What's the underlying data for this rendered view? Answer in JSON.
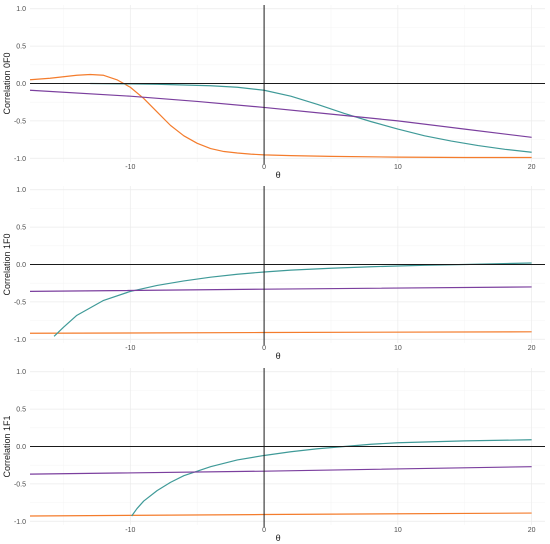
{
  "chart_data": [
    {
      "type": "line",
      "xlabel": "θ",
      "ylabel": "Correlation 0F0",
      "xlim": [
        -17.5,
        21
      ],
      "ylim": [
        -1.05,
        1.05
      ],
      "xticks": [
        -10,
        0,
        10,
        20
      ],
      "yticks": [
        -1.0,
        -0.5,
        0.0,
        0.5,
        1.0
      ],
      "ytick_labels": [
        "-1.0",
        "-0.5",
        "0.0",
        "0.5",
        "1.0"
      ],
      "reference_lines": {
        "x": 0,
        "y": 0
      },
      "series": [
        {
          "color": "#F47C2C",
          "x": [
            -17.5,
            -16,
            -14,
            -13,
            -12,
            -11,
            -10,
            -9,
            -8,
            -7,
            -6,
            -5,
            -4,
            -3,
            -2,
            -1,
            0,
            2,
            5,
            10,
            15,
            20
          ],
          "y": [
            0.05,
            0.07,
            0.11,
            0.12,
            0.11,
            0.05,
            -0.05,
            -0.2,
            -0.38,
            -0.56,
            -0.7,
            -0.8,
            -0.87,
            -0.91,
            -0.93,
            -0.945,
            -0.955,
            -0.965,
            -0.975,
            -0.985,
            -0.99,
            -0.99
          ]
        },
        {
          "color": "#3F9A98",
          "x": [
            -13,
            -10,
            -8,
            -6,
            -4,
            -2,
            0,
            2,
            4,
            6,
            8,
            10,
            12,
            14,
            16,
            18,
            20
          ],
          "y": [
            0.0,
            -0.005,
            -0.01,
            -0.02,
            -0.03,
            -0.05,
            -0.09,
            -0.17,
            -0.28,
            -0.4,
            -0.51,
            -0.61,
            -0.7,
            -0.77,
            -0.83,
            -0.88,
            -0.92
          ]
        },
        {
          "color": "#7B3F9E",
          "x": [
            -17.5,
            -10,
            -5,
            0,
            5,
            10,
            15,
            20
          ],
          "y": [
            -0.09,
            -0.17,
            -0.24,
            -0.32,
            -0.41,
            -0.5,
            -0.61,
            -0.72
          ]
        }
      ]
    },
    {
      "type": "line",
      "xlabel": "θ",
      "ylabel": "Correlation 1F0",
      "xlim": [
        -17.5,
        21
      ],
      "ylim": [
        -1.05,
        1.05
      ],
      "xticks": [
        -10,
        0,
        10,
        20
      ],
      "yticks": [
        -1.0,
        -0.5,
        0.0,
        0.5,
        1.0
      ],
      "ytick_labels": [
        "-1.0",
        "-0.5",
        "0.0",
        "0.5",
        "1.0"
      ],
      "reference_lines": {
        "x": 0,
        "y": 0
      },
      "series": [
        {
          "color": "#F47C2C",
          "x": [
            -17.5,
            0,
            20
          ],
          "y": [
            -0.92,
            -0.91,
            -0.9
          ]
        },
        {
          "color": "#3F9A98",
          "x": [
            -15.7,
            -15,
            -14,
            -12,
            -10,
            -8,
            -6,
            -4,
            -2,
            0,
            2,
            5,
            8,
            10,
            12,
            15,
            20
          ],
          "y": [
            -0.96,
            -0.84,
            -0.68,
            -0.48,
            -0.36,
            -0.28,
            -0.22,
            -0.17,
            -0.13,
            -0.1,
            -0.075,
            -0.05,
            -0.03,
            -0.02,
            -0.01,
            0.0,
            0.02
          ]
        },
        {
          "color": "#7B3F9E",
          "x": [
            -17.5,
            0,
            20
          ],
          "y": [
            -0.36,
            -0.33,
            -0.3
          ]
        }
      ]
    },
    {
      "type": "line",
      "xlabel": "θ",
      "ylabel": "Correlation 1F1",
      "xlim": [
        -17.5,
        21
      ],
      "ylim": [
        -1.05,
        1.05
      ],
      "xticks": [
        -10,
        0,
        10,
        20
      ],
      "yticks": [
        -1.0,
        -0.5,
        0.0,
        0.5,
        1.0
      ],
      "ytick_labels": [
        "-1.0",
        "-0.5",
        "0.0",
        "0.5",
        "1.0"
      ],
      "reference_lines": {
        "x": 0,
        "y": 0
      },
      "series": [
        {
          "color": "#F47C2C",
          "x": [
            -17.5,
            0,
            20
          ],
          "y": [
            -0.93,
            -0.91,
            -0.89
          ]
        },
        {
          "color": "#3F9A98",
          "x": [
            -9.9,
            -9.5,
            -9,
            -8,
            -7,
            -6,
            -4,
            -2,
            0,
            2,
            4,
            6,
            8,
            10,
            12,
            15,
            20
          ],
          "y": [
            -0.93,
            -0.83,
            -0.73,
            -0.59,
            -0.48,
            -0.39,
            -0.27,
            -0.18,
            -0.12,
            -0.07,
            -0.03,
            0.0,
            0.03,
            0.05,
            0.06,
            0.075,
            0.09
          ]
        },
        {
          "color": "#7B3F9E",
          "x": [
            -17.5,
            0,
            20
          ],
          "y": [
            -0.37,
            -0.33,
            -0.27
          ]
        }
      ]
    }
  ]
}
